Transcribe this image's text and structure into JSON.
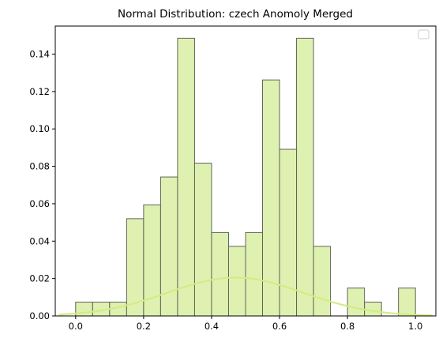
{
  "chart_data": {
    "type": "bar",
    "subtype": "histogram",
    "title": "Normal Distribution: czech Anomoly Merged",
    "xlabel": "",
    "ylabel": "",
    "xlim": [
      -0.06,
      1.06
    ],
    "ylim": [
      0,
      0.155
    ],
    "xticks": [
      0.0,
      0.2,
      0.4,
      0.6,
      0.8,
      1.0
    ],
    "xtick_labels": [
      "0.0",
      "0.2",
      "0.4",
      "0.6",
      "0.8",
      "1.0"
    ],
    "yticks": [
      0.0,
      0.02,
      0.04,
      0.06,
      0.08,
      0.1,
      0.12,
      0.14
    ],
    "ytick_labels": [
      "0.00",
      "0.02",
      "0.04",
      "0.06",
      "0.08",
      "0.10",
      "0.12",
      "0.14"
    ],
    "grid": false,
    "legend": {
      "placement": "top-right",
      "entries": []
    },
    "bin_edges": [
      0.0,
      0.05,
      0.1,
      0.15,
      0.2,
      0.25,
      0.3,
      0.35,
      0.4,
      0.45,
      0.5,
      0.55,
      0.6,
      0.65,
      0.7,
      0.75,
      0.8,
      0.85,
      0.9,
      0.95,
      1.0
    ],
    "values": [
      0.0074,
      0.0074,
      0.0074,
      0.052,
      0.0594,
      0.0743,
      0.1485,
      0.0817,
      0.0446,
      0.0372,
      0.0446,
      0.1262,
      0.0891,
      0.1485,
      0.0372,
      0.0,
      0.0149,
      0.0074,
      0.0,
      0.0149
    ],
    "curve": {
      "kind": "normal-pdf",
      "peak_x": 0.47,
      "peak_y": 0.0205,
      "sigma": 0.2,
      "x_range": [
        -0.05,
        1.05
      ]
    },
    "colors": {
      "bar_fill": "#dff1b0",
      "bar_edge": "#5f645a",
      "curve": "#d3ec84",
      "axes": "#000000"
    }
  }
}
